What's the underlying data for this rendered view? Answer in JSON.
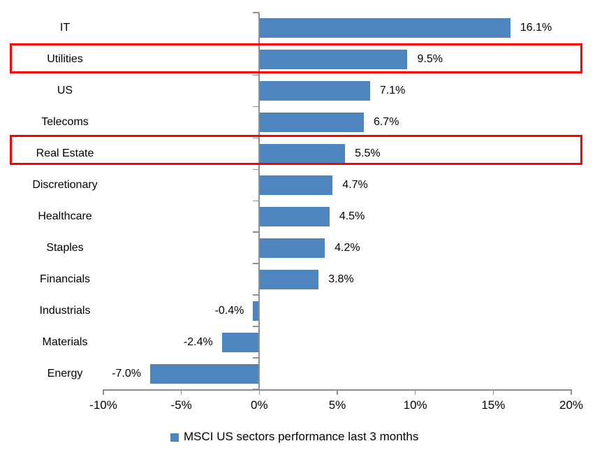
{
  "chart_data": {
    "type": "bar",
    "orientation": "horizontal",
    "title": "",
    "categories": [
      "IT",
      "Utilities",
      "US",
      "Telecoms",
      "Real Estate",
      "Discretionary",
      "Healthcare",
      "Staples",
      "Financials",
      "Industrials",
      "Materials",
      "Energy"
    ],
    "values": [
      16.1,
      9.5,
      7.1,
      6.7,
      5.5,
      4.7,
      4.5,
      4.2,
      3.8,
      -0.4,
      -2.4,
      -7.0
    ],
    "value_labels": [
      "16.1%",
      "9.5%",
      "7.1%",
      "6.7%",
      "5.5%",
      "4.7%",
      "4.5%",
      "4.2%",
      "3.8%",
      "-0.4%",
      "-2.4%",
      "-7.0%"
    ],
    "xlim": [
      -10,
      20
    ],
    "x_ticks": [
      {
        "value": -10,
        "label": "-10%"
      },
      {
        "value": -5,
        "label": "-5%"
      },
      {
        "value": 0,
        "label": "0%"
      },
      {
        "value": 5,
        "label": "5%"
      },
      {
        "value": 10,
        "label": "10%"
      },
      {
        "value": 15,
        "label": "15%"
      },
      {
        "value": 20,
        "label": "20%"
      }
    ],
    "grid": "off",
    "legend": "MSCI US sectors performance last 3 months",
    "legend_position": "bottom",
    "bar_color": "#4E85BD",
    "axis_color": "#909090",
    "text_color": "#000000",
    "highlight_box_color": "#FF0000",
    "highlighted_categories": [
      "Utilities",
      "Real Estate"
    ]
  }
}
